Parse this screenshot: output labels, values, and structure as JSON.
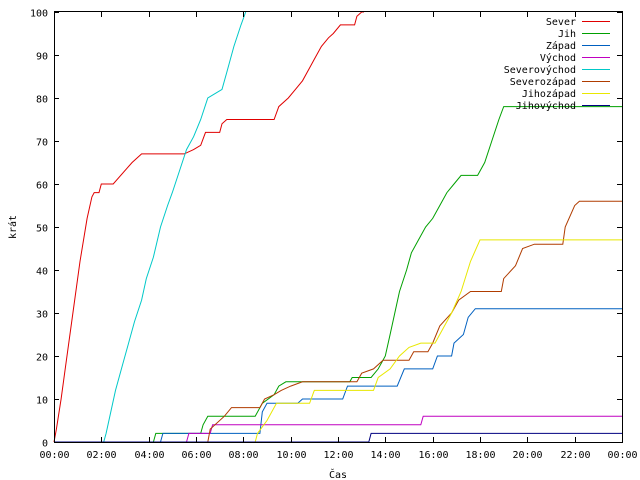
{
  "chart_data": {
    "type": "line",
    "title": "",
    "xlabel": "Čas",
    "ylabel": "krát",
    "xlim": [
      0,
      24
    ],
    "ylim": [
      0,
      100
    ],
    "x_ticks": [
      "00:00",
      "02:00",
      "04:00",
      "06:00",
      "08:00",
      "10:00",
      "12:00",
      "14:00",
      "16:00",
      "18:00",
      "20:00",
      "22:00",
      "00:00"
    ],
    "y_ticks": [
      0,
      10,
      20,
      30,
      40,
      50,
      60,
      70,
      80,
      90,
      100
    ],
    "grid": false,
    "legend_position": "top-right",
    "series": [
      {
        "name": "Sever",
        "color": "#e00000",
        "points": [
          [
            0.0,
            0
          ],
          [
            0.1,
            3
          ],
          [
            0.3,
            10
          ],
          [
            0.5,
            18
          ],
          [
            0.8,
            30
          ],
          [
            1.1,
            42
          ],
          [
            1.4,
            52
          ],
          [
            1.6,
            57
          ],
          [
            1.7,
            58
          ],
          [
            1.9,
            58
          ],
          [
            2.0,
            60
          ],
          [
            2.5,
            60
          ],
          [
            3.3,
            65
          ],
          [
            3.7,
            67
          ],
          [
            4.8,
            67
          ],
          [
            5.5,
            67
          ],
          [
            5.9,
            68
          ],
          [
            6.2,
            69
          ],
          [
            6.4,
            72
          ],
          [
            7.0,
            72
          ],
          [
            7.1,
            74
          ],
          [
            7.3,
            75
          ],
          [
            9.3,
            75
          ],
          [
            9.5,
            78
          ],
          [
            9.9,
            80
          ],
          [
            10.2,
            82
          ],
          [
            10.5,
            84
          ],
          [
            10.8,
            87
          ],
          [
            11.0,
            89
          ],
          [
            11.3,
            92
          ],
          [
            11.6,
            94
          ],
          [
            11.8,
            95
          ],
          [
            12.1,
            97
          ],
          [
            12.7,
            97
          ],
          [
            12.8,
            99
          ],
          [
            13.0,
            100
          ],
          [
            13.1,
            100
          ]
        ]
      },
      {
        "name": "Jih",
        "color": "#00a000",
        "points": [
          [
            0.0,
            0
          ],
          [
            4.2,
            0
          ],
          [
            4.3,
            2
          ],
          [
            6.2,
            2
          ],
          [
            6.3,
            4
          ],
          [
            6.5,
            6
          ],
          [
            8.5,
            6
          ],
          [
            8.8,
            9
          ],
          [
            9.3,
            11
          ],
          [
            9.5,
            13
          ],
          [
            9.8,
            14
          ],
          [
            12.5,
            14
          ],
          [
            12.6,
            15
          ],
          [
            13.4,
            15
          ],
          [
            13.7,
            17
          ],
          [
            14.0,
            20
          ],
          [
            14.2,
            25
          ],
          [
            14.4,
            30
          ],
          [
            14.6,
            35
          ],
          [
            14.9,
            40
          ],
          [
            15.1,
            44
          ],
          [
            15.4,
            47
          ],
          [
            15.7,
            50
          ],
          [
            16.0,
            52
          ],
          [
            16.3,
            55
          ],
          [
            16.6,
            58
          ],
          [
            16.9,
            60
          ],
          [
            17.2,
            62
          ],
          [
            17.9,
            62
          ],
          [
            18.2,
            65
          ],
          [
            18.5,
            70
          ],
          [
            18.8,
            75
          ],
          [
            19.0,
            78
          ],
          [
            24.0,
            78
          ]
        ]
      },
      {
        "name": "Západ",
        "color": "#0060c0",
        "points": [
          [
            0.0,
            0
          ],
          [
            4.5,
            0
          ],
          [
            4.6,
            2
          ],
          [
            8.7,
            2
          ],
          [
            8.8,
            7
          ],
          [
            9.0,
            9
          ],
          [
            10.3,
            9
          ],
          [
            10.5,
            10
          ],
          [
            12.2,
            10
          ],
          [
            12.4,
            13
          ],
          [
            14.5,
            13
          ],
          [
            14.8,
            17
          ],
          [
            16.0,
            17
          ],
          [
            16.2,
            20
          ],
          [
            16.8,
            20
          ],
          [
            16.9,
            23
          ],
          [
            17.3,
            25
          ],
          [
            17.5,
            29
          ],
          [
            17.8,
            31
          ],
          [
            24.0,
            31
          ]
        ]
      },
      {
        "name": "Východ",
        "color": "#c000c0",
        "points": [
          [
            0.0,
            0
          ],
          [
            5.6,
            0
          ],
          [
            5.7,
            2
          ],
          [
            6.6,
            2
          ],
          [
            6.7,
            4
          ],
          [
            15.5,
            4
          ],
          [
            15.6,
            6
          ],
          [
            24.0,
            6
          ]
        ]
      },
      {
        "name": "Severovýchod",
        "color": "#00c8c8",
        "points": [
          [
            0.0,
            0
          ],
          [
            2.1,
            0
          ],
          [
            2.2,
            2
          ],
          [
            2.4,
            7
          ],
          [
            2.6,
            12
          ],
          [
            2.9,
            18
          ],
          [
            3.1,
            22
          ],
          [
            3.4,
            28
          ],
          [
            3.7,
            33
          ],
          [
            3.9,
            38
          ],
          [
            4.2,
            43
          ],
          [
            4.5,
            50
          ],
          [
            4.8,
            55
          ],
          [
            5.0,
            58
          ],
          [
            5.3,
            63
          ],
          [
            5.6,
            68
          ],
          [
            5.9,
            71
          ],
          [
            6.2,
            75
          ],
          [
            6.5,
            80
          ],
          [
            6.8,
            81
          ],
          [
            7.1,
            82
          ],
          [
            7.3,
            86
          ],
          [
            7.6,
            92
          ],
          [
            7.9,
            97
          ],
          [
            8.1,
            100
          ]
        ]
      },
      {
        "name": "Severozápad",
        "color": "#b03c00",
        "points": [
          [
            0.0,
            0
          ],
          [
            6.5,
            0
          ],
          [
            6.6,
            3
          ],
          [
            7.2,
            6
          ],
          [
            7.5,
            8
          ],
          [
            8.7,
            8
          ],
          [
            8.9,
            10
          ],
          [
            9.3,
            11
          ],
          [
            9.6,
            12
          ],
          [
            10.0,
            13
          ],
          [
            10.5,
            14
          ],
          [
            12.8,
            14
          ],
          [
            13.0,
            16
          ],
          [
            13.5,
            17
          ],
          [
            13.9,
            19
          ],
          [
            15.0,
            19
          ],
          [
            15.2,
            21
          ],
          [
            15.8,
            21
          ],
          [
            16.0,
            23
          ],
          [
            16.3,
            27
          ],
          [
            16.8,
            30
          ],
          [
            17.1,
            33
          ],
          [
            17.6,
            35
          ],
          [
            18.9,
            35
          ],
          [
            19.0,
            38
          ],
          [
            19.5,
            41
          ],
          [
            19.8,
            45
          ],
          [
            20.3,
            46
          ],
          [
            21.5,
            46
          ],
          [
            21.6,
            50
          ],
          [
            22.0,
            55
          ],
          [
            22.2,
            56
          ],
          [
            24.0,
            56
          ]
        ]
      },
      {
        "name": "Jihozápad",
        "color": "#e8e800",
        "points": [
          [
            0.0,
            0
          ],
          [
            8.5,
            0
          ],
          [
            8.6,
            2
          ],
          [
            9.0,
            5
          ],
          [
            9.4,
            9
          ],
          [
            10.8,
            9
          ],
          [
            11.0,
            12
          ],
          [
            13.5,
            12
          ],
          [
            13.7,
            15
          ],
          [
            14.2,
            17
          ],
          [
            14.6,
            20
          ],
          [
            15.0,
            22
          ],
          [
            15.5,
            23
          ],
          [
            16.1,
            23
          ],
          [
            16.4,
            26
          ],
          [
            16.8,
            30
          ],
          [
            17.2,
            35
          ],
          [
            17.6,
            42
          ],
          [
            18.0,
            47
          ],
          [
            24.0,
            47
          ]
        ]
      },
      {
        "name": "Jihovýchod",
        "color": "#000080",
        "points": [
          [
            0.0,
            0
          ],
          [
            13.3,
            0
          ],
          [
            13.4,
            2
          ],
          [
            24.0,
            2
          ]
        ]
      }
    ]
  }
}
